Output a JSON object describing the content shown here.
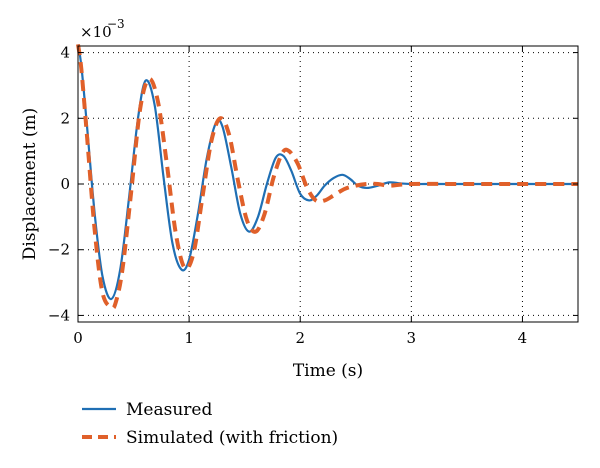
{
  "chart_data": {
    "type": "line",
    "title": "",
    "xlabel": "Time (s)",
    "ylabel": "Displacement (m)",
    "y_multiplier_base": "×10",
    "y_multiplier_exp": "−3",
    "xlim": [
      0,
      4.5
    ],
    "ylim": [
      -4.2,
      4.2
    ],
    "xticks": [
      0,
      1,
      2,
      3,
      4
    ],
    "yticks": [
      -4,
      -2,
      0,
      2,
      4
    ],
    "xtick_labels": [
      "0",
      "1",
      "2",
      "3",
      "4"
    ],
    "ytick_labels": [
      "−4",
      "−2",
      "0",
      "2",
      "4"
    ],
    "grid": true,
    "grid_style": "dotted",
    "legend_position": "below",
    "series": [
      {
        "name": "Measured",
        "style": "solid",
        "color": "#1f6fb4",
        "x": [
          0,
          0.03,
          0.08,
          0.15,
          0.22,
          0.3,
          0.38,
          0.46,
          0.54,
          0.61,
          0.69,
          0.77,
          0.85,
          0.93,
          1.0,
          1.08,
          1.16,
          1.24,
          1.3,
          1.38,
          1.46,
          1.54,
          1.62,
          1.7,
          1.78,
          1.85,
          1.92,
          2.0,
          2.08,
          2.15,
          2.22,
          2.3,
          2.38,
          2.45,
          2.52,
          2.6,
          2.7,
          2.8,
          2.9,
          3.0,
          3.2,
          3.5,
          4.0,
          4.5
        ],
        "y": [
          4.25,
          3.6,
          1.8,
          -0.9,
          -2.8,
          -3.5,
          -2.6,
          -0.4,
          2.0,
          3.15,
          2.4,
          0.2,
          -1.8,
          -2.6,
          -2.3,
          -0.9,
          0.8,
          1.85,
          1.75,
          0.5,
          -0.9,
          -1.45,
          -1.0,
          0.0,
          0.8,
          0.85,
          0.4,
          -0.3,
          -0.5,
          -0.35,
          -0.05,
          0.18,
          0.28,
          0.15,
          -0.05,
          -0.12,
          -0.05,
          0.05,
          0.02,
          0.0,
          0.0,
          0.0,
          0.0,
          0.0
        ]
      },
      {
        "name": "Simulated (with friction)",
        "style": "dashed",
        "color": "#e0602a",
        "x": [
          0,
          0.03,
          0.08,
          0.15,
          0.22,
          0.3,
          0.34,
          0.4,
          0.48,
          0.56,
          0.64,
          0.72,
          0.8,
          0.88,
          0.96,
          1.04,
          1.12,
          1.2,
          1.28,
          1.36,
          1.44,
          1.52,
          1.6,
          1.68,
          1.76,
          1.84,
          1.9,
          1.98,
          2.06,
          2.14,
          2.22,
          2.3,
          2.4,
          2.5,
          2.6,
          2.7,
          2.8,
          3.0,
          3.5,
          4.0,
          4.5
        ],
        "y": [
          4.25,
          3.5,
          1.5,
          -1.4,
          -3.3,
          -3.75,
          -3.6,
          -2.6,
          -0.2,
          2.3,
          3.2,
          2.5,
          0.6,
          -1.5,
          -2.55,
          -2.1,
          -0.4,
          1.3,
          2.0,
          1.5,
          0.1,
          -1.1,
          -1.45,
          -0.9,
          0.2,
          0.95,
          1.0,
          0.6,
          -0.1,
          -0.5,
          -0.5,
          -0.35,
          -0.15,
          -0.05,
          0.0,
          0.0,
          -0.05,
          0.0,
          0.0,
          0.0,
          0.0
        ]
      }
    ]
  }
}
